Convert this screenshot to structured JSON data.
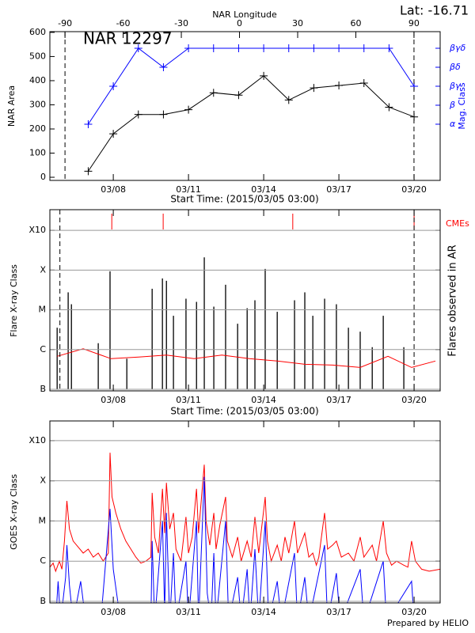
{
  "chart_data": [
    {
      "type": "line",
      "title": "NAR 12297",
      "subtitle": "Lat: -16.71",
      "x_label": "Start Time: (2015/03/05 03:00)",
      "y_label": "NAR Area",
      "y2_label": "Mag. Class",
      "x2_label": "NAR Longitude",
      "x": [
        7,
        8,
        9,
        10,
        11,
        12,
        13,
        14,
        15,
        16,
        17,
        18,
        19,
        20
      ],
      "xlim": [
        5.47,
        21.04
      ],
      "xticks": [
        {
          "value": 8,
          "label": "03/08"
        },
        {
          "value": 11,
          "label": "03/11"
        },
        {
          "value": 14,
          "label": "03/14"
        },
        {
          "value": 17,
          "label": "03/17"
        },
        {
          "value": 20,
          "label": "03/20"
        }
      ],
      "x2lim": [
        -97.8,
        103.5
      ],
      "x2ticks": [
        -90,
        -60,
        -30,
        0,
        30,
        60,
        90
      ],
      "dashed_x2": [
        -90,
        90
      ],
      "ylim": [
        -13,
        603
      ],
      "yticks": [
        0,
        100,
        200,
        300,
        400,
        500,
        600
      ],
      "y2lim": [
        -1.96,
        5.875
      ],
      "y2ticks": [
        {
          "value": 1,
          "label": "α"
        },
        {
          "value": 2,
          "label": "β"
        },
        {
          "value": 3,
          "label": "βγ"
        },
        {
          "value": 4,
          "label": "βδ"
        },
        {
          "value": 5,
          "label": "βγδ"
        }
      ],
      "series": [
        {
          "color": "#000000",
          "values": [
            25,
            180,
            260,
            260,
            280,
            350,
            340,
            420,
            320,
            370,
            380,
            390,
            290,
            250
          ]
        },
        {
          "color": "#0000ff",
          "axis": "y2",
          "values": [
            1,
            3,
            5,
            4,
            5,
            5,
            5,
            5,
            5,
            5,
            5,
            5,
            5,
            3
          ]
        }
      ],
      "grid": false
    },
    {
      "type": "bar",
      "x_label": "Start Time: (2015/03/05 03:00)",
      "y_label": "Flare X-ray Class",
      "y2_label": "Flares observed in AR",
      "x": [
        5.76,
        6.2,
        6.33,
        7.4,
        7.87,
        8.54,
        9.55,
        9.96,
        10.12,
        10.4,
        10.9,
        11.32,
        11.63,
        12.01,
        12.48,
        12.96,
        13.34,
        13.65,
        14.06,
        14.54,
        15.23,
        15.64,
        15.96,
        16.43,
        16.9,
        17.38,
        17.85,
        18.33,
        18.77,
        19.59
      ],
      "values": [
        1.55,
        2.44,
        2.14,
        1.16,
        2.97,
        0.77,
        2.53,
        2.79,
        2.73,
        1.85,
        2.28,
        2.2,
        3.32,
        2.08,
        2.63,
        1.65,
        2.04,
        2.24,
        3.03,
        1.95,
        2.24,
        2.44,
        1.85,
        2.28,
        2.14,
        1.55,
        1.45,
        1.06,
        1.85,
        1.06
      ],
      "color": "#000000",
      "line": {
        "color": "#ff0000",
        "x": [
          5.76,
          6.8,
          7.91,
          9.01,
          10.12,
          11.22,
          12.33,
          13.43,
          14.54,
          15.64,
          16.75,
          17.85,
          18.96,
          19.9,
          20.85
        ],
        "values": [
          0.83,
          1.02,
          0.77,
          0.81,
          0.86,
          0.77,
          0.86,
          0.77,
          0.71,
          0.63,
          0.61,
          0.55,
          0.83,
          0.55,
          0.71
        ]
      },
      "cmes": {
        "label": "CMEs",
        "color": "#ff0000",
        "x": [
          7.94,
          9.99,
          15.16,
          20.0
        ]
      },
      "dashed_x": [
        5.87,
        20.0
      ],
      "xlim": [
        5.47,
        21.04
      ],
      "xticks": [
        {
          "value": 8,
          "label": "03/08"
        },
        {
          "value": 11,
          "label": "03/11"
        },
        {
          "value": 14,
          "label": "03/14"
        },
        {
          "value": 17,
          "label": "03/17"
        },
        {
          "value": 20,
          "label": "03/20"
        }
      ],
      "ylim": [
        -0.04,
        4.52
      ],
      "yticks": [
        {
          "value": 0,
          "label": "B"
        },
        {
          "value": 1,
          "label": "C"
        },
        {
          "value": 2,
          "label": "M"
        },
        {
          "value": 3,
          "label": "X"
        },
        {
          "value": 4,
          "label": "X10"
        }
      ],
      "grid": true
    },
    {
      "type": "line",
      "y_label": "GOES X-ray Class",
      "credit": "Prepared by HELIO",
      "xlim": [
        5.47,
        21.04
      ],
      "xticks": [
        {
          "value": 8,
          "label": "03/08"
        },
        {
          "value": 11,
          "label": "03/11"
        },
        {
          "value": 14,
          "label": "03/14"
        },
        {
          "value": 17,
          "label": "03/17"
        },
        {
          "value": 20,
          "label": "03/20"
        }
      ],
      "ylim": [
        -0.04,
        4.49
      ],
      "yticks": [
        {
          "value": 0,
          "label": "B"
        },
        {
          "value": 1,
          "label": "C"
        },
        {
          "value": 2,
          "label": "M"
        },
        {
          "value": 3,
          "label": "X"
        },
        {
          "value": 4,
          "label": "X10"
        }
      ],
      "grid": true,
      "clip": true,
      "series": [
        {
          "color": "#ff0000",
          "x": [
            5.47,
            5.6,
            5.7,
            5.85,
            5.95,
            6.05,
            6.15,
            6.25,
            6.4,
            6.6,
            6.8,
            7.0,
            7.2,
            7.4,
            7.6,
            7.8,
            7.87,
            7.95,
            8.1,
            8.3,
            8.5,
            8.7,
            8.9,
            9.1,
            9.3,
            9.5,
            9.55,
            9.65,
            9.8,
            9.96,
            10.05,
            10.12,
            10.25,
            10.4,
            10.5,
            10.7,
            10.9,
            11.0,
            11.15,
            11.32,
            11.4,
            11.63,
            11.7,
            11.85,
            12.01,
            12.1,
            12.25,
            12.48,
            12.55,
            12.75,
            12.96,
            13.1,
            13.34,
            13.5,
            13.65,
            13.8,
            14.06,
            14.15,
            14.3,
            14.54,
            14.7,
            14.85,
            15.0,
            15.23,
            15.35,
            15.64,
            15.8,
            15.96,
            16.1,
            16.2,
            16.43,
            16.55,
            16.75,
            16.9,
            17.1,
            17.38,
            17.6,
            17.85,
            18.0,
            18.33,
            18.5,
            18.77,
            18.9,
            19.1,
            19.3,
            19.59,
            19.75,
            19.9,
            20.05,
            20.3,
            20.6,
            21.04
          ],
          "values": [
            0.85,
            0.95,
            0.75,
            1.0,
            0.8,
            1.5,
            2.5,
            1.8,
            1.5,
            1.35,
            1.2,
            1.3,
            1.1,
            1.2,
            1.0,
            1.2,
            3.7,
            2.6,
            2.2,
            1.8,
            1.5,
            1.3,
            1.1,
            0.95,
            1.0,
            1.1,
            2.7,
            1.6,
            1.2,
            2.8,
            1.7,
            2.95,
            1.8,
            2.2,
            1.3,
            1.0,
            2.1,
            1.2,
            1.6,
            2.8,
            1.7,
            3.4,
            2.0,
            1.4,
            2.2,
            1.3,
            1.9,
            2.6,
            1.5,
            1.1,
            1.6,
            1.0,
            1.5,
            1.1,
            2.1,
            1.2,
            2.6,
            1.5,
            1.0,
            1.4,
            1.0,
            1.6,
            1.2,
            2.0,
            1.2,
            1.7,
            1.1,
            1.2,
            0.9,
            1.1,
            2.2,
            1.3,
            1.4,
            1.5,
            1.1,
            1.2,
            1.0,
            1.6,
            1.1,
            1.4,
            1.0,
            2.0,
            1.2,
            0.9,
            1.0,
            0.9,
            0.85,
            1.5,
            1.0,
            0.8,
            0.75,
            0.8
          ]
        },
        {
          "color": "#0000ff",
          "x": [
            5.47,
            5.7,
            5.8,
            5.9,
            6.1,
            6.15,
            6.25,
            6.4,
            6.7,
            6.9,
            7.5,
            7.87,
            8.0,
            8.2,
            8.4,
            9.5,
            9.55,
            9.65,
            9.96,
            10.05,
            10.12,
            10.25,
            10.4,
            10.5,
            10.9,
            11.0,
            11.32,
            11.4,
            11.63,
            11.75,
            11.9,
            12.01,
            12.1,
            12.48,
            12.6,
            12.96,
            13.1,
            13.34,
            13.45,
            13.65,
            13.8,
            14.06,
            14.2,
            14.54,
            14.7,
            15.23,
            15.35,
            15.64,
            15.8,
            16.43,
            16.55,
            16.9,
            17.05,
            17.85,
            18.0,
            18.77,
            18.9,
            19.9,
            20.0,
            21.04
          ],
          "values": [
            -0.5,
            -0.5,
            0.5,
            -0.5,
            0.6,
            1.4,
            0.4,
            -0.5,
            0.5,
            -0.5,
            -0.5,
            2.3,
            0.8,
            -0.1,
            -0.5,
            -0.5,
            1.5,
            -0.5,
            2.0,
            -0.3,
            2.2,
            -0.5,
            1.2,
            -0.5,
            1.0,
            -0.5,
            2.0,
            -0.5,
            3.1,
            0.2,
            -0.5,
            1.2,
            -0.5,
            2.0,
            -0.5,
            0.6,
            -0.5,
            0.8,
            -0.5,
            1.3,
            -0.5,
            2.0,
            -0.5,
            0.5,
            -0.5,
            1.2,
            -0.5,
            0.6,
            -0.5,
            1.4,
            -0.5,
            0.7,
            -0.5,
            0.8,
            -0.5,
            1.0,
            -0.5,
            0.5,
            -0.5,
            -0.5
          ]
        }
      ]
    }
  ]
}
